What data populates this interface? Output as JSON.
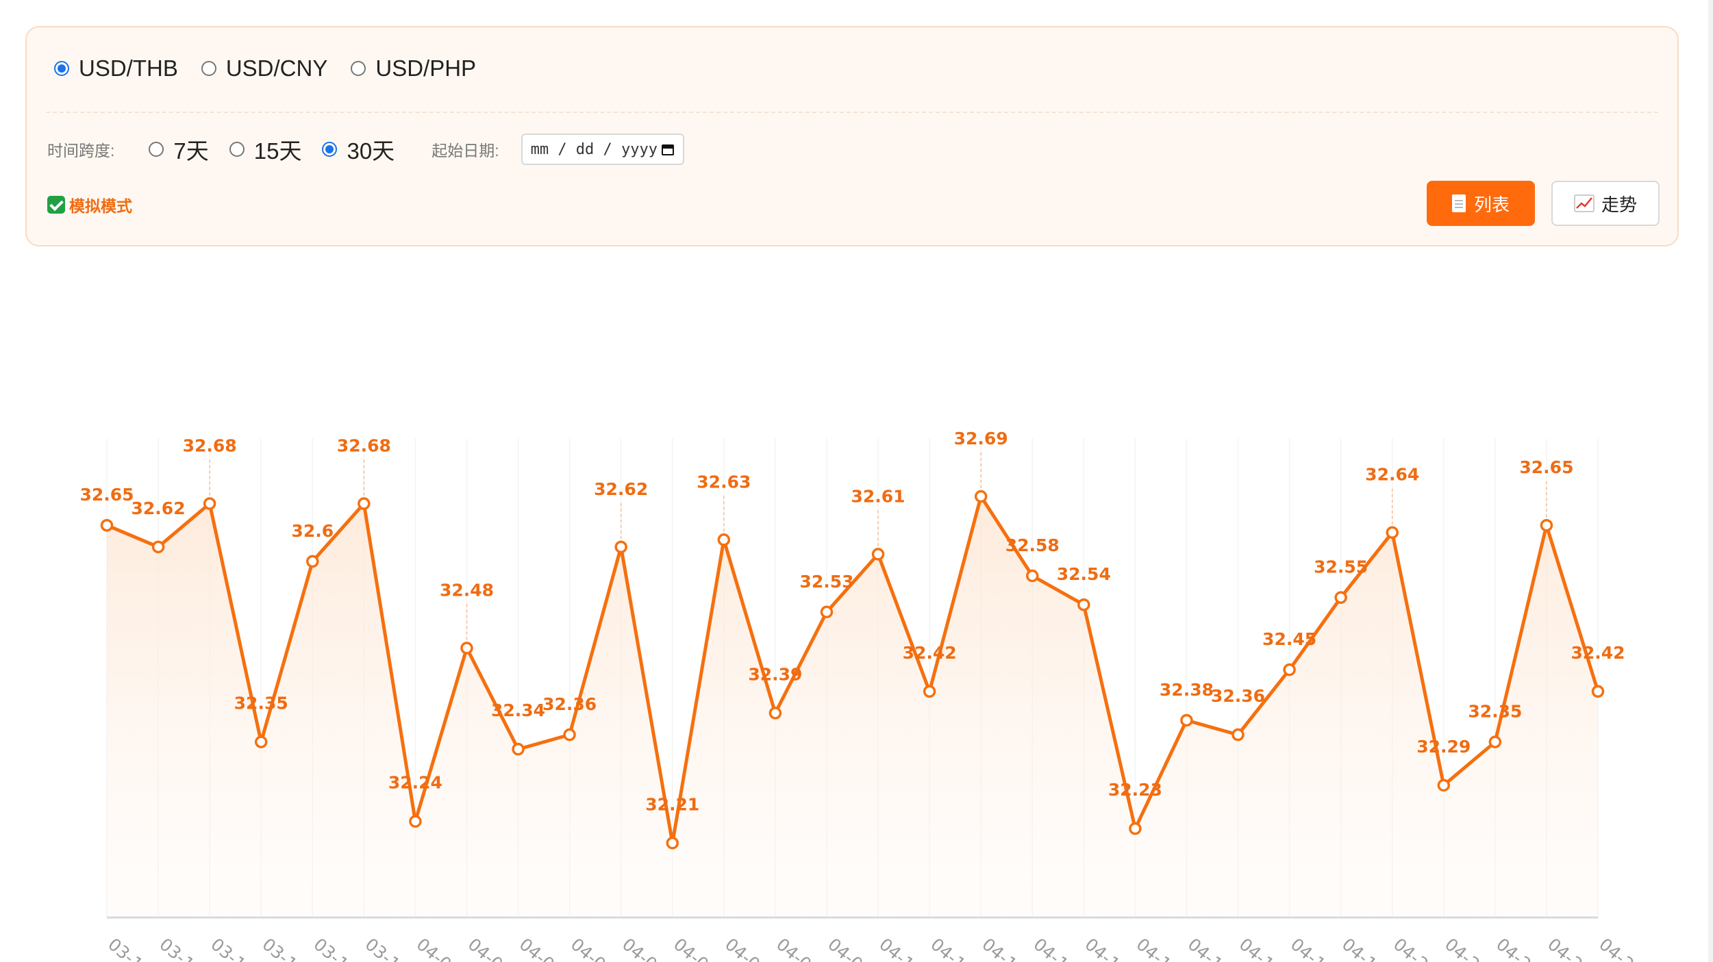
{
  "pairs": {
    "options": [
      "USD/THB",
      "USD/CNY",
      "USD/PHP"
    ],
    "selected": 0
  },
  "controls": {
    "range_label": "时间跨度:",
    "range_options": [
      "7天",
      "15天",
      "30天"
    ],
    "range_selected": 2,
    "start_date_label": "起始日期:",
    "date_placeholder": "mm / dd / yyyy"
  },
  "mode_label": "模拟模式",
  "buttons": {
    "list_label": "列表",
    "trend_label": "走势"
  },
  "colors": {
    "accent": "#ff6a0d",
    "line": "#f5700f",
    "label": "#ef6c12",
    "radio": "#1a73e8"
  },
  "chart_data": {
    "type": "area",
    "title": "",
    "xlabel": "",
    "ylabel": "",
    "x": [
      "03-1",
      "03-1",
      "03-1",
      "03-1",
      "03-1",
      "03-1",
      "04-0",
      "04-0",
      "04-0",
      "04-0",
      "04-0",
      "04-0",
      "04-0",
      "04-0",
      "04-0",
      "04-1",
      "04-1",
      "04-1",
      "04-1",
      "04-1",
      "04-1",
      "04-1",
      "04-1",
      "04-1",
      "04-1",
      "04-2",
      "04-2",
      "04-2",
      "04-2",
      "04-2"
    ],
    "values": [
      32.65,
      32.62,
      32.68,
      32.35,
      32.6,
      32.68,
      32.24,
      32.48,
      32.34,
      32.36,
      32.62,
      32.21,
      32.63,
      32.39,
      32.53,
      32.61,
      32.42,
      32.69,
      32.58,
      32.54,
      32.23,
      32.38,
      32.36,
      32.45,
      32.55,
      32.64,
      32.29,
      32.35,
      32.65,
      32.42
    ],
    "ylim": [
      32.16,
      32.69
    ],
    "markers": true,
    "data_labels": true,
    "grid": "vertical-faint",
    "x_tick_rotation": "rotated-diagonal"
  }
}
